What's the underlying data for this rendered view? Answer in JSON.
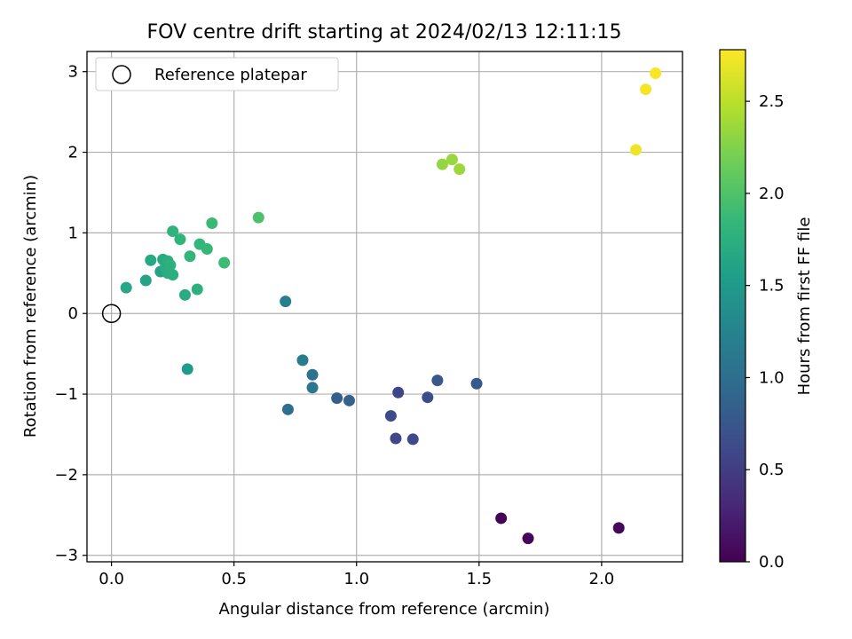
{
  "chart_data": {
    "type": "scatter",
    "title": "FOV centre drift starting at 2024/02/13 12:11:15",
    "xlabel": "Angular distance from reference (arcmin)",
    "ylabel": "Rotation from reference (arcmin)",
    "xlim": [
      -0.1,
      2.33
    ],
    "ylim": [
      -3.08,
      3.25
    ],
    "xticks": [
      0.0,
      0.5,
      1.0,
      1.5,
      2.0
    ],
    "xtick_labels": [
      "0.0",
      "0.5",
      "1.0",
      "1.5",
      "2.0"
    ],
    "yticks": [
      -3,
      -2,
      -1,
      0,
      1,
      2,
      3
    ],
    "ytick_labels": [
      "−3",
      "−2",
      "−1",
      "0",
      "1",
      "2",
      "3"
    ],
    "grid": true,
    "legend": {
      "position": "top-left",
      "label": "Reference platepar"
    },
    "reference_point": {
      "x": 0.0,
      "y": 0.0
    },
    "colorbar": {
      "label": "Hours from first FF file",
      "min": 0.0,
      "max": 2.78,
      "ticks": [
        0.0,
        0.5,
        1.0,
        1.5,
        2.0,
        2.5
      ],
      "tick_labels": [
        "0.0",
        "0.5",
        "1.0",
        "1.5",
        "2.0",
        "2.5"
      ],
      "colormap": "viridis"
    },
    "points": [
      {
        "x": 1.59,
        "y": -2.54,
        "c": 0.02
      },
      {
        "x": 1.7,
        "y": -2.79,
        "c": 0.04
      },
      {
        "x": 2.07,
        "y": -2.66,
        "c": 0.06
      },
      {
        "x": 1.16,
        "y": -1.55,
        "c": 0.6
      },
      {
        "x": 1.23,
        "y": -1.56,
        "c": 0.62
      },
      {
        "x": 1.14,
        "y": -1.27,
        "c": 0.64
      },
      {
        "x": 1.17,
        "y": -0.98,
        "c": 0.58
      },
      {
        "x": 1.29,
        "y": -1.04,
        "c": 0.66
      },
      {
        "x": 1.33,
        "y": -0.83,
        "c": 0.75
      },
      {
        "x": 1.49,
        "y": -0.87,
        "c": 0.78
      },
      {
        "x": 0.92,
        "y": -1.05,
        "c": 0.82
      },
      {
        "x": 0.97,
        "y": -1.08,
        "c": 0.86
      },
      {
        "x": 0.72,
        "y": -1.19,
        "c": 1.0
      },
      {
        "x": 0.82,
        "y": -0.76,
        "c": 1.05
      },
      {
        "x": 0.82,
        "y": -0.92,
        "c": 1.1
      },
      {
        "x": 0.78,
        "y": -0.58,
        "c": 1.15
      },
      {
        "x": 0.71,
        "y": 0.15,
        "c": 1.18
      },
      {
        "x": 0.31,
        "y": -0.69,
        "c": 1.5
      },
      {
        "x": 0.06,
        "y": 0.32,
        "c": 1.65
      },
      {
        "x": 0.14,
        "y": 0.41,
        "c": 1.62
      },
      {
        "x": 0.16,
        "y": 0.66,
        "c": 1.66
      },
      {
        "x": 0.2,
        "y": 0.52,
        "c": 1.6
      },
      {
        "x": 0.21,
        "y": 0.67,
        "c": 1.68
      },
      {
        "x": 0.22,
        "y": 0.57,
        "c": 1.7
      },
      {
        "x": 0.23,
        "y": 0.5,
        "c": 1.72
      },
      {
        "x": 0.23,
        "y": 0.65,
        "c": 1.73
      },
      {
        "x": 0.25,
        "y": 0.48,
        "c": 1.74
      },
      {
        "x": 0.24,
        "y": 0.6,
        "c": 1.76
      },
      {
        "x": 0.25,
        "y": 1.02,
        "c": 1.78
      },
      {
        "x": 0.28,
        "y": 0.92,
        "c": 1.8
      },
      {
        "x": 0.3,
        "y": 0.23,
        "c": 1.7
      },
      {
        "x": 0.32,
        "y": 0.71,
        "c": 1.82
      },
      {
        "x": 0.35,
        "y": 0.3,
        "c": 1.75
      },
      {
        "x": 0.36,
        "y": 0.86,
        "c": 1.84
      },
      {
        "x": 0.39,
        "y": 0.8,
        "c": 1.86
      },
      {
        "x": 0.41,
        "y": 1.12,
        "c": 1.88
      },
      {
        "x": 0.46,
        "y": 0.63,
        "c": 1.9
      },
      {
        "x": 0.6,
        "y": 1.19,
        "c": 1.98
      },
      {
        "x": 1.35,
        "y": 1.85,
        "c": 2.33
      },
      {
        "x": 1.39,
        "y": 1.91,
        "c": 2.35
      },
      {
        "x": 1.42,
        "y": 1.79,
        "c": 2.37
      },
      {
        "x": 2.14,
        "y": 2.03,
        "c": 2.72
      },
      {
        "x": 2.18,
        "y": 2.78,
        "c": 2.74
      },
      {
        "x": 2.22,
        "y": 2.98,
        "c": 2.76
      }
    ]
  }
}
